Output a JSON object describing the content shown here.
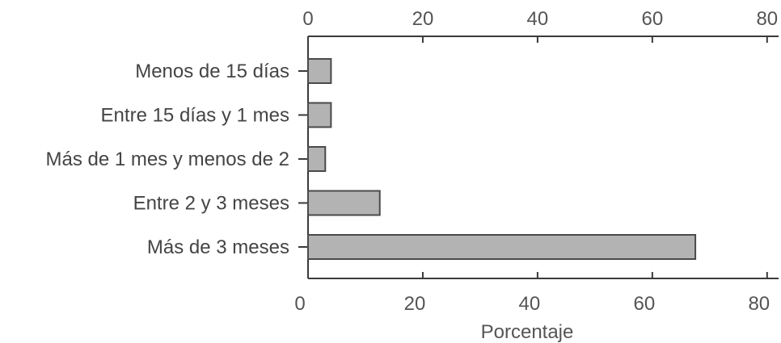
{
  "chart_data": {
    "type": "bar",
    "orientation": "horizontal",
    "categories": [
      "Menos de 15 días",
      "Entre 15 días y 1 mes",
      "Más de 1 mes y menos de 2",
      "Entre 2 y 3 meses",
      "Más de 3 meses"
    ],
    "values": [
      4,
      4,
      3,
      12.5,
      67.5
    ],
    "title": "",
    "xlabel": "Porcentaje",
    "ylabel": "",
    "xlim": [
      0,
      82
    ],
    "xticks": [
      0,
      20,
      40,
      60,
      80
    ],
    "tick_labels": [
      "0",
      "20",
      "40",
      "60",
      "80"
    ],
    "grid": false,
    "bar_color": "#b3b3b3",
    "edge_color": "#4a4a4a",
    "axis_color": "#3a3a3a"
  }
}
